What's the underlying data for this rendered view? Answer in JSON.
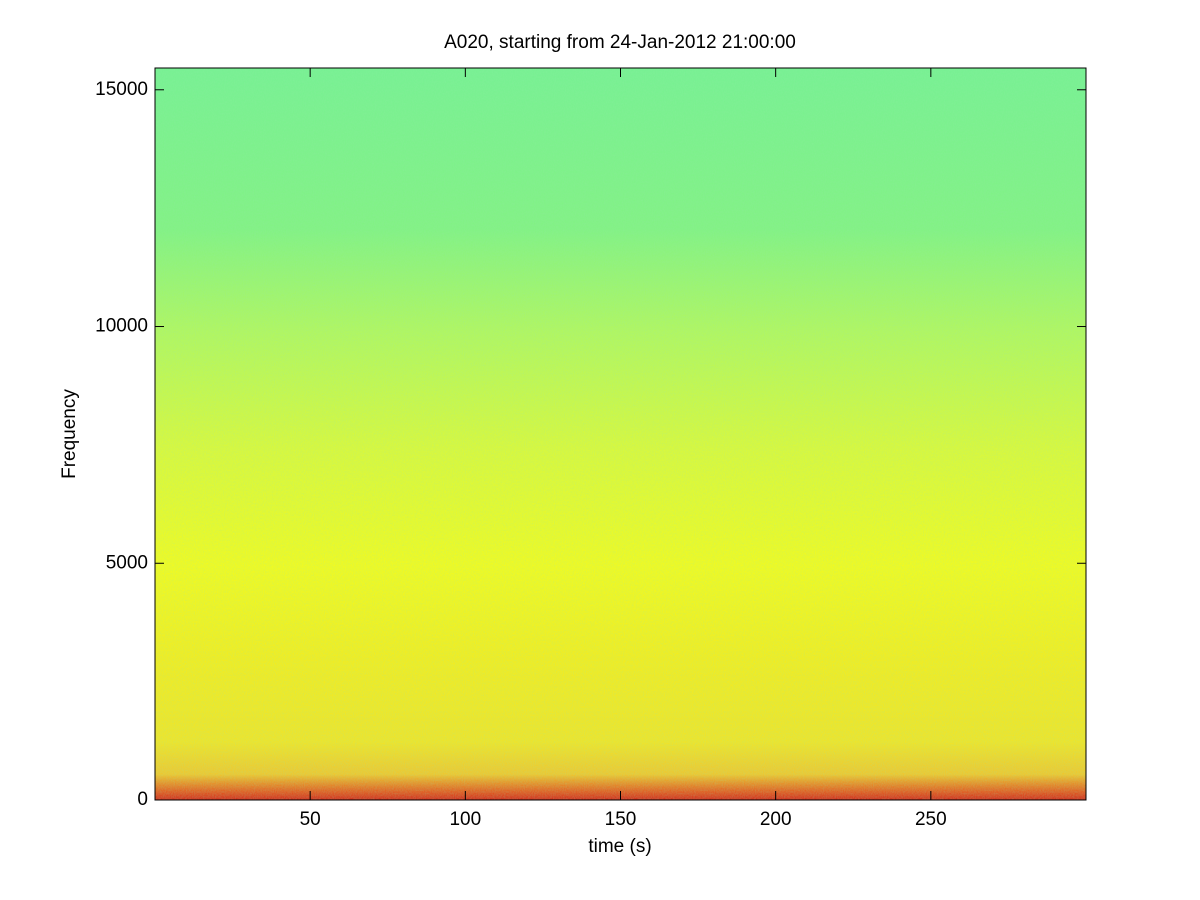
{
  "chart_data": {
    "type": "spectrogram",
    "title": "A020, starting from 24-Jan-2012 21:00:00",
    "x_label": "time (s)",
    "y_label": "Frequency",
    "xlim": [
      0,
      300
    ],
    "ylim": [
      0,
      15460
    ],
    "xticks": [
      50,
      100,
      150,
      200,
      250
    ],
    "yticks": [
      0,
      5000,
      10000,
      15000
    ]
  }
}
